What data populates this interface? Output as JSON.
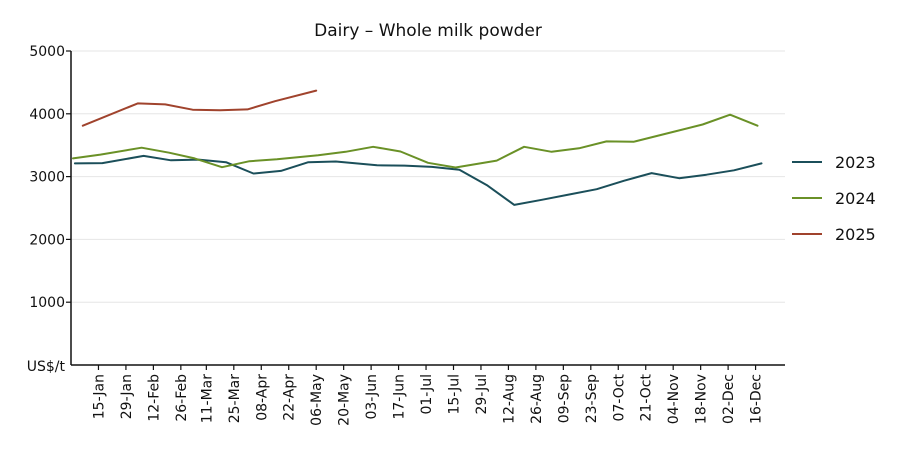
{
  "chart_data": {
    "type": "line",
    "title": "Dairy – Whole milk powder",
    "unit_label": "US$/t",
    "ylim": [
      0,
      5000
    ],
    "yticks": [
      1000,
      2000,
      3000,
      4000,
      5000
    ],
    "grid": "horizontal",
    "legend_position": "right",
    "x_start": "01-Jan",
    "x_end": "31-Dec",
    "x_tick_labels": [
      "15-Jan",
      "29-Jan",
      "12-Feb",
      "26-Feb",
      "11-Mar",
      "25-Mar",
      "08-Apr",
      "22-Apr",
      "06-May",
      "20-May",
      "03-Jun",
      "17-Jun",
      "01-Jul",
      "15-Jul",
      "29-Jul",
      "12-Aug",
      "26-Aug",
      "09-Sep",
      "23-Sep",
      "07-Oct",
      "21-Oct",
      "04-Nov",
      "18-Nov",
      "02-Dec",
      "16-Dec"
    ],
    "series": [
      {
        "name": "2023",
        "color": "#1b4f5a",
        "x": [
          "03-Jan",
          "17-Jan",
          "07-Feb",
          "21-Feb",
          "07-Mar",
          "21-Mar",
          "04-Apr",
          "18-Apr",
          "02-May",
          "16-May",
          "06-Jun",
          "20-Jun",
          "04-Jul",
          "18-Jul",
          "01-Aug",
          "15-Aug",
          "29-Aug",
          "12-Sep",
          "26-Sep",
          "10-Oct",
          "24-Oct",
          "07-Nov",
          "21-Nov",
          "05-Dec",
          "19-Dec"
        ],
        "y": [
          3210,
          3215,
          3330,
          3260,
          3270,
          3230,
          3050,
          3090,
          3230,
          3240,
          3180,
          3175,
          3155,
          3110,
          2865,
          2550,
          2630,
          2715,
          2800,
          2935,
          3055,
          2975,
          3030,
          3100,
          3210
        ]
      },
      {
        "name": "2024",
        "color": "#6a9127",
        "x": [
          "02-Jan",
          "16-Jan",
          "06-Feb",
          "20-Feb",
          "05-Mar",
          "19-Mar",
          "02-Apr",
          "16-Apr",
          "07-May",
          "21-May",
          "04-Jun",
          "18-Jun",
          "02-Jul",
          "16-Jul",
          "06-Aug",
          "20-Aug",
          "03-Sep",
          "17-Sep",
          "01-Oct",
          "15-Oct",
          "05-Nov",
          "19-Nov",
          "03-Dec",
          "17-Dec"
        ],
        "y": [
          3290,
          3350,
          3460,
          3380,
          3290,
          3150,
          3245,
          3275,
          3340,
          3395,
          3475,
          3400,
          3220,
          3145,
          3255,
          3475,
          3395,
          3450,
          3560,
          3555,
          3720,
          3830,
          3985,
          3810
        ]
      },
      {
        "name": "2025",
        "color": "#a0432d",
        "x": [
          "07-Jan",
          "04-Feb",
          "18-Feb",
          "04-Mar",
          "18-Mar",
          "01-Apr",
          "15-Apr",
          "06-May"
        ],
        "y": [
          3810,
          4165,
          4150,
          4065,
          4055,
          4070,
          4200,
          4370
        ]
      }
    ]
  }
}
